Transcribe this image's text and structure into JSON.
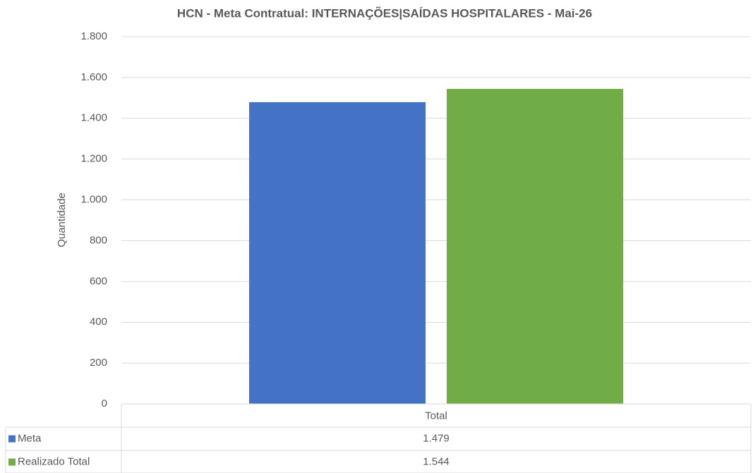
{
  "chart_data": {
    "type": "bar",
    "title": "HCN - Meta Contratual: INTERNAÇÕES|SAÍDAS HOSPITALARES - Mai-26",
    "ylabel": "Quantidade",
    "categories": [
      "Total"
    ],
    "series": [
      {
        "name": "Meta",
        "color": "#4472c4",
        "values": [
          1479
        ],
        "value_labels": [
          "1.479"
        ]
      },
      {
        "name": "Realizado Total",
        "color": "#70ad47",
        "values": [
          1544
        ],
        "value_labels": [
          "1.544"
        ]
      }
    ],
    "ylim": [
      0,
      1800
    ],
    "yticks": [
      {
        "value": 0,
        "label": "0"
      },
      {
        "value": 200,
        "label": "200"
      },
      {
        "value": 400,
        "label": "400"
      },
      {
        "value": 600,
        "label": "600"
      },
      {
        "value": 800,
        "label": "800"
      },
      {
        "value": 1000,
        "label": "1.000"
      },
      {
        "value": 1200,
        "label": "1.200"
      },
      {
        "value": 1400,
        "label": "1.400"
      },
      {
        "value": 1600,
        "label": "1.600"
      },
      {
        "value": 1800,
        "label": "1.800"
      }
    ],
    "grid": true
  }
}
